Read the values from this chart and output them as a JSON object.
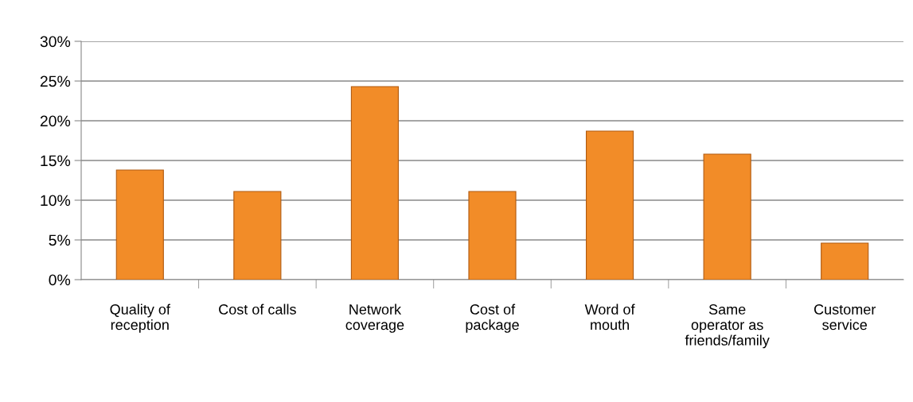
{
  "chart_data": {
    "type": "bar",
    "categories": [
      "Quality of\nreception",
      "Cost of calls",
      "Network\ncoverage",
      "Cost of\npackage",
      "Word of\nmouth",
      "Same\noperator as\nfriends/family",
      "Customer\nservice"
    ],
    "values": [
      13.8,
      11.1,
      24.3,
      11.1,
      18.7,
      15.8,
      4.6
    ],
    "color": "#f28c28",
    "ylim": [
      0,
      30
    ],
    "yticks": [
      {
        "value": 0,
        "label": "0%"
      },
      {
        "value": 5,
        "label": "5%"
      },
      {
        "value": 10,
        "label": "10%"
      },
      {
        "value": 15,
        "label": "15%"
      },
      {
        "value": 20,
        "label": "20%"
      },
      {
        "value": 25,
        "label": "25%"
      },
      {
        "value": 30,
        "label": "30%"
      }
    ],
    "grid": "y"
  }
}
